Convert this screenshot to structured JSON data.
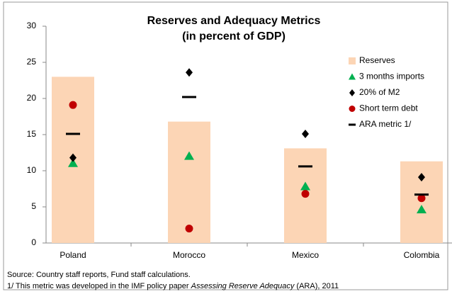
{
  "chart_data": {
    "type": "bar",
    "title": "Reserves and Adequacy Metrics",
    "subtitle": "(in percent of GDP)",
    "categories": [
      "Poland",
      "Morocco",
      "Mexico",
      "Colombia"
    ],
    "series": [
      {
        "name": "Reserves",
        "color": "#fcd5b5",
        "marker": "bar",
        "values": [
          23,
          16.8,
          13.1,
          11.3
        ]
      },
      {
        "name": "3 months imports",
        "color": "#00b050",
        "marker": "triangle",
        "values": [
          11,
          12,
          7.8,
          4.6
        ]
      },
      {
        "name": "20% of M2",
        "color": "#000000",
        "marker": "diamond",
        "values": [
          11.8,
          23.6,
          15.1,
          9.1
        ]
      },
      {
        "name": "Short term debt",
        "color": "#c00000",
        "marker": "circle",
        "values": [
          19.1,
          2.0,
          6.8,
          6.2
        ]
      },
      {
        "name": "ARA metric 1/",
        "color": "#000000",
        "marker": "dash",
        "values": [
          15.1,
          20.2,
          10.6,
          6.7
        ]
      }
    ],
    "ylim": [
      0,
      30
    ],
    "yticks": [
      0,
      5,
      10,
      15,
      20,
      25,
      30
    ],
    "grid": false,
    "legend": "right",
    "notes": [
      "Source: Country staff reports, Fund staff calculations.",
      [
        "1/ This metric was developed in the IMF policy paper ",
        "Assessing Reserve Adequacy",
        " (ARA), 2011"
      ]
    ]
  }
}
